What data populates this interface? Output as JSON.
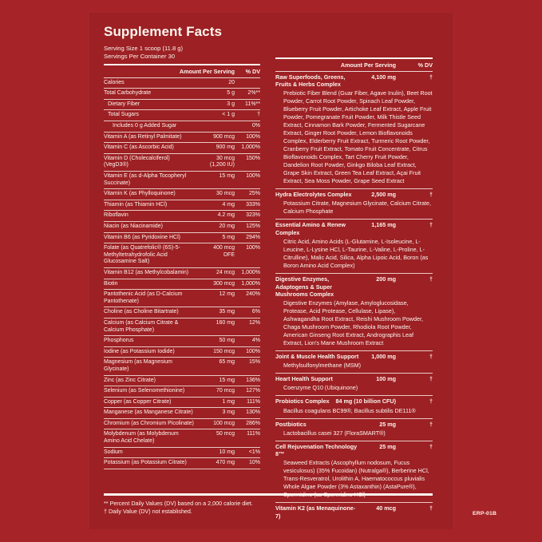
{
  "title": "Supplement Facts",
  "serving": {
    "size_label": "Serving Size 1 scoop (11.8 g)",
    "container_label": "Servings Per Container 30"
  },
  "left_table": {
    "header": {
      "amount_label": "Amount Per Serving",
      "dv_label": "% DV"
    },
    "rows": [
      {
        "name": "Calories",
        "amt": "20",
        "dv": "",
        "indent": 0
      },
      {
        "name": "Total Carbohydrate",
        "amt": "5 g",
        "dv": "2%**",
        "indent": 0
      },
      {
        "name": "Dietary Fiber",
        "amt": "3 g",
        "dv": "11%**",
        "indent": 1
      },
      {
        "name": "Total Sugars",
        "amt": "< 1 g",
        "dv": "†",
        "indent": 1
      },
      {
        "name": "Includes 0 g Added Sugar",
        "amt": "",
        "dv": "0%",
        "indent": 2
      },
      {
        "name": "Vitamin A (as Retinyl Palmitate)",
        "amt": "900 mcg",
        "dv": "100%",
        "indent": 0
      },
      {
        "name": "Vitamin C (as Ascorbic Acid)",
        "amt": "900 mg",
        "dv": "1,000%",
        "indent": 0
      },
      {
        "name": "Vitamin D (Cholecalciferol) (VegD3®)",
        "amt": "30 mcg",
        "amt2": "(1,200 IU)",
        "dv": "150%",
        "indent": 0
      },
      {
        "name": "Vitamin E (as d-Alpha Tocopheryl Succinate)",
        "amt": "15 mg",
        "dv": "100%",
        "indent": 0
      },
      {
        "name": "Vitamin K (as Phylloquinone)",
        "amt": "30 mcg",
        "dv": "25%",
        "indent": 0
      },
      {
        "name": "Thiamin (as Thiamin HCl)",
        "amt": "4 mg",
        "dv": "333%",
        "indent": 0
      },
      {
        "name": "Riboflavin",
        "amt": "4.2 mg",
        "dv": "323%",
        "indent": 0
      },
      {
        "name": "Niacin (as Niacinamide)",
        "amt": "20 mg",
        "dv": "125%",
        "indent": 0
      },
      {
        "name": "Vitamin B6 (as Pyridoxine HCl)",
        "amt": "5 mg",
        "dv": "294%",
        "indent": 0
      },
      {
        "name": "Folate (as Quatrefolic® (6S)-5-Methyltetrahydrofolic Acid Glucosamine Salt)",
        "amt": "400 mcg",
        "amt2": "DFE",
        "dv": "100%",
        "indent": 0
      },
      {
        "name": "Vitamin B12 (as Methylcobalamin)",
        "amt": "24 mcg",
        "dv": "1,000%",
        "indent": 0
      },
      {
        "name": "Biotin",
        "amt": "300 mcg",
        "dv": "1,000%",
        "indent": 0
      },
      {
        "name": "Pantothenic Acid (as D-Calcium Pantothenate)",
        "amt": "12 mg",
        "dv": "240%",
        "indent": 0
      },
      {
        "name": "Choline (as Choline Bitartrate)",
        "amt": "35 mg",
        "dv": "6%",
        "indent": 0
      },
      {
        "name": "Calcium (as Calcium Citrate & Calcium Phosphate)",
        "amt": "160 mg",
        "dv": "12%",
        "indent": 0
      },
      {
        "name": "Phosphorus",
        "amt": "50 mg",
        "dv": "4%",
        "indent": 0
      },
      {
        "name": "Iodine (as Potassium Iodide)",
        "amt": "150 mcg",
        "dv": "100%",
        "indent": 0
      },
      {
        "name": "Magnesium (as Magnesium Glycinate)",
        "amt": "65 mg",
        "dv": "15%",
        "indent": 0
      },
      {
        "name": "Zinc (as Zinc Citrate)",
        "amt": "15 mg",
        "dv": "136%",
        "indent": 0
      },
      {
        "name": "Selenium (as Selenomethionine)",
        "amt": "70 mcg",
        "dv": "127%",
        "indent": 0
      },
      {
        "name": "Copper (as Copper Citrate)",
        "amt": "1 mg",
        "dv": "111%",
        "indent": 0
      },
      {
        "name": "Manganese (as Manganese Citrate)",
        "amt": "3 mg",
        "dv": "130%",
        "indent": 0
      },
      {
        "name": "Chromium (as Chromium Picolinate)",
        "amt": "100 mcg",
        "dv": "286%",
        "indent": 0
      },
      {
        "name": "Molybdenum (as Molybdenum Amino Acid Chelate)",
        "amt": "50 mcg",
        "dv": "111%",
        "indent": 0
      },
      {
        "name": "Sodium",
        "amt": "10 mg",
        "dv": "<1%",
        "indent": 0
      },
      {
        "name": "Potassium (as Potassium Citrate)",
        "amt": "470 mg",
        "dv": "10%",
        "indent": 0
      }
    ]
  },
  "right_table": {
    "header": {
      "amount_label": "Amount Per Serving",
      "dv_label": "% DV"
    },
    "sections": [
      {
        "name": "Raw Superfoods, Greens, Fruits & Herbs Complex",
        "amt": "4,100 mg",
        "dv": "†",
        "ingredients": "Prebiotic Fiber Blend (Guar Fiber, Agave Inulin), Beet Root Powder, Carrot Root Powder, Spinach Leaf Powder, Blueberry Fruit Powder, Artichoke Leaf Extract, Apple Fruit Powder, Pomegranate Fruit Powder, Milk Thistle Seed Extract, Cinnamon Bark Powder, Fermented Sugarcane Extract, Ginger Root Powder, Lemon Bioflavonoids Complex, Elderberry Fruit Extract, Turmeric Root Powder, Cranberry Fruit Extract, Tomato Fruit Concentrate, Citrus Bioflavonoids Complex, Tart Cherry Fruit Powder, Dandelion Root Powder, Ginkgo Biloba Leaf Extract, Grape Skin Extract, Green Tea Leaf Extract, Açai Fruit Extract, Sea Moss Powder, Grape Seed Extract"
      },
      {
        "name": "Hydra Electrolytes Complex",
        "amt": "2,500 mg",
        "dv": "†",
        "ingredients": "Potassium Citrate, Magnesium Glycinate, Calcium Citrate, Calcium Phosphate"
      },
      {
        "name": "Essential Amino & Renew Complex",
        "amt": "1,165 mg",
        "dv": "†",
        "ingredients": "Citric Acid, Amino Acids (L-Glutamine, L-Isoleucine, L-Leucine, L-Lysine HCl, L-Taurine, L-Valine, L-Proline, L-Citrulline), Malic Acid, Silica, Alpha Lipoic Acid, Boron (as Boron Amino Acid Complex)"
      },
      {
        "name": "Digestive Enzymes, Adaptogens & Super Mushrooms Complex",
        "amt": "200 mg",
        "dv": "†",
        "ingredients": "Digestive Enzymes (Amylase, Amyloglucosidase, Protease, Acid Protease, Cellulase, Lipase), Ashwagandha Root Extract, Reishi Mushroom Powder, Chaga Mushroom Powder, Rhodiola Root Powder, American Ginseng Root Extract, Andrographis Leaf Extract, Lion's Mane Mushroom Extract"
      },
      {
        "name": "Joint & Muscle Health Support",
        "amt": "1,000 mg",
        "dv": "†",
        "ingredients": "Methylsulfonylmethane (MSM)"
      },
      {
        "name": "Heart Health Support",
        "amt": "100 mg",
        "dv": "†",
        "ingredients": "Coenzyme Q10 (Ubiquinone)"
      },
      {
        "name": "Probiotics Complex",
        "amt": "84 mg (10 billion CFU)",
        "dv": "†",
        "ingredients": "Bacillus coagulans BC99®, Bacillus subtilis DE111®"
      },
      {
        "name": "Postbiotics",
        "amt": "25 mg",
        "dv": "†",
        "ingredients": "Lactobacillus casei 327 (FloraSMART®)"
      },
      {
        "name": "Cell Rejuvenation Technology 8™",
        "amt": "25 mg",
        "dv": "†",
        "ingredients": "Seaweed Extracts (Ascophyllum nodosum, Fucus vesiculosus) (35% Fucoidan) (Nutralga®), Berberine HCl, Trans-Resveratrol, Urolithin A, Haematococcus pluvialis Whole Algae Powder (3% Astaxanthin) (AstaPure®), Spermidine (as Spermidine HCl)"
      },
      {
        "name": "Vitamin K2 (as Menaquinone-7)",
        "amt": "40 mcg",
        "dv": "†",
        "ingredients": ""
      }
    ]
  },
  "footnotes": [
    "** Percent Daily Values (DV) based on a 2,000 calorie diet.",
    "† Daily Value (DV) not established."
  ],
  "product_code": "ERP-01B",
  "colors": {
    "background": "#a62428",
    "panel": "#9c2024",
    "text": "#fdf5ee"
  }
}
